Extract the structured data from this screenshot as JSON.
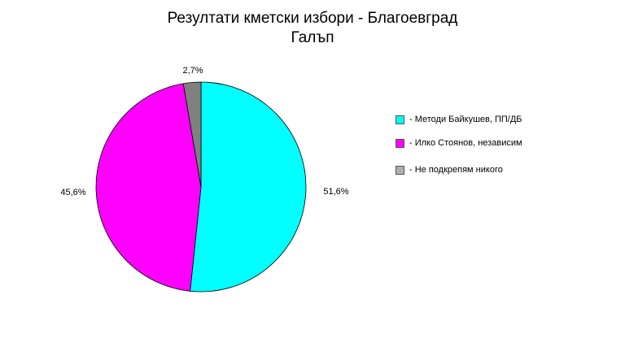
{
  "chart_data": {
    "type": "pie",
    "title": "Резултати кметски избори - Благоевград",
    "subtitle": "Галъп",
    "categories": [
      "- Методи Байкушев, ПП/ДБ",
      "- Илко Стоянов, независим",
      "- Не подкрепям никого"
    ],
    "values": [
      51.6,
      45.6,
      2.7
    ],
    "labels": [
      "51,6%",
      "45,6%",
      "2,7%"
    ],
    "colors": [
      "#00ffff",
      "#ff00ff",
      "#808080"
    ],
    "legend_colors": [
      "#00ffff",
      "#ff00ff",
      "#b0b0b0"
    ],
    "legend_placement": "right"
  }
}
